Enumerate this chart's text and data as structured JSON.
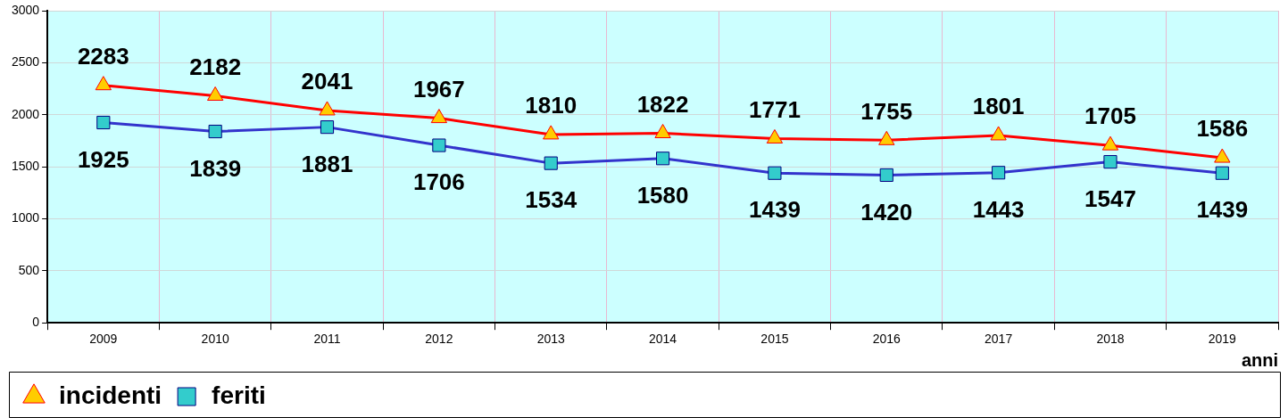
{
  "chart_data": {
    "type": "line",
    "xlabel": "anni",
    "categories": [
      "2009",
      "2010",
      "2011",
      "2012",
      "2013",
      "2014",
      "2015",
      "2016",
      "2017",
      "2018",
      "2019"
    ],
    "series": [
      {
        "name": "incidenti",
        "color": "#ff0000",
        "marker": "triangle",
        "values": [
          2283,
          2182,
          2041,
          1967,
          1810,
          1822,
          1771,
          1755,
          1801,
          1705,
          1586
        ]
      },
      {
        "name": "feriti",
        "color": "#3333cc",
        "marker": "square",
        "values": [
          1925,
          1839,
          1881,
          1706,
          1534,
          1580,
          1439,
          1420,
          1443,
          1547,
          1439
        ]
      }
    ],
    "ylim": [
      0,
      3000
    ],
    "yticks": [
      0,
      500,
      1000,
      1500,
      2000,
      2500,
      3000
    ],
    "grid": true,
    "legend": "bottom left",
    "data_labels": true
  }
}
